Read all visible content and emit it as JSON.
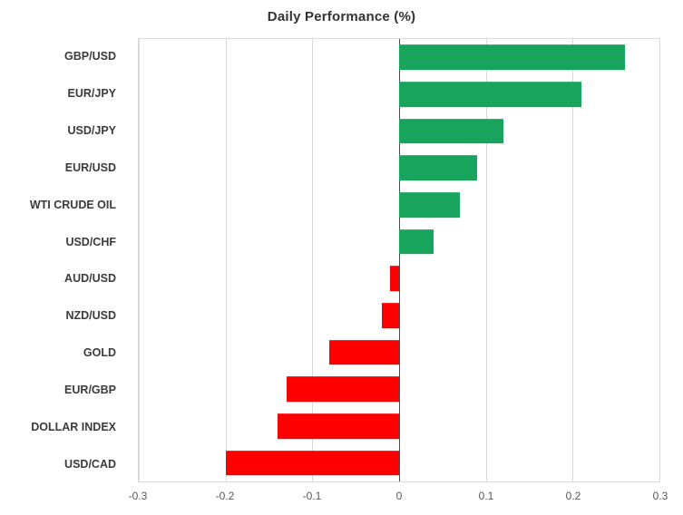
{
  "chart_data": {
    "type": "bar",
    "orientation": "horizontal",
    "title": "Daily Performance (%)",
    "categories": [
      "GBP/USD",
      "EUR/JPY",
      "USD/JPY",
      "EUR/USD",
      "WTI CRUDE OIL",
      "USD/CHF",
      "AUD/USD",
      "NZD/USD",
      "GOLD",
      "EUR/GBP",
      "DOLLAR INDEX",
      "USD/CAD"
    ],
    "values": [
      0.26,
      0.21,
      0.12,
      0.09,
      0.07,
      0.04,
      -0.01,
      -0.02,
      -0.08,
      -0.13,
      -0.14,
      -0.2
    ],
    "xlim": [
      -0.3,
      0.3
    ],
    "xticks": [
      -0.3,
      -0.2,
      -0.1,
      0,
      0.1,
      0.2,
      0.3
    ],
    "xtick_labels": [
      "-0.3",
      "-0.2",
      "-0.1",
      "0",
      "0.1",
      "0.2",
      "0.3"
    ],
    "grid": true,
    "legend": "none",
    "positive_color": "#18a45c",
    "negative_color": "#ff0000",
    "gridline_color": "#d9d9d9",
    "zero_line_color": "#4d4d4d",
    "label_color": "#3b3b3b",
    "tick_color": "#595959"
  }
}
